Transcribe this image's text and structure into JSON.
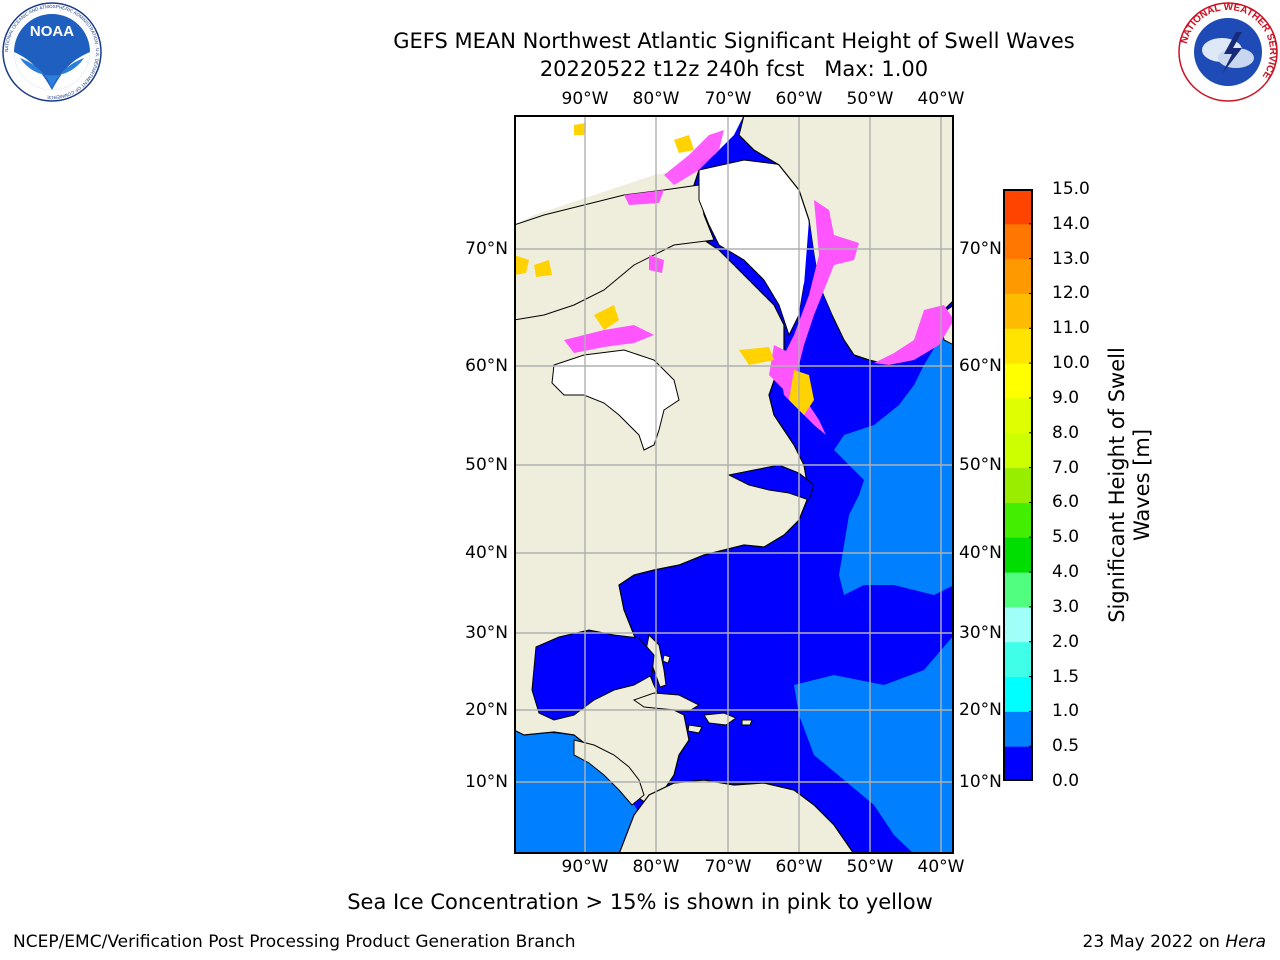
{
  "header": {
    "title_line1": "GEFS MEAN Northwest Atlantic Significant Height of Swell Waves",
    "title_line2": "20220522 t12z 240h fcst   Max: 1.00"
  },
  "logos": {
    "left_text": "NOAA",
    "left_ring": "NATIONAL OCEANIC AND ATMOSPHERIC ADMINISTRATION · U.S. DEPARTMENT OF COMMERCE",
    "right_ring": "NATIONAL WEATHER SERVICE"
  },
  "map": {
    "lon_labels": [
      "90°W",
      "80°W",
      "70°W",
      "60°W",
      "50°W",
      "40°W"
    ],
    "lat_labels": [
      "70°N",
      "60°N",
      "50°N",
      "40°N",
      "30°N",
      "20°N",
      "10°N"
    ],
    "colors": {
      "land": "#efeedc",
      "ocean_low": "#0000ff",
      "ocean_mid": "#0080ff",
      "ice_pink": "#ff55ff",
      "ice_yellow": "#ffd200",
      "grid": "#b0b0b0"
    }
  },
  "colorbar": {
    "title_line1": "Significant Height of Swell",
    "title_line2": "Waves [m]",
    "ticks": [
      "15.0",
      "14.0",
      "13.0",
      "12.0",
      "11.0",
      "10.0",
      "9.0",
      "8.0",
      "7.0",
      "6.0",
      "5.0",
      "4.0",
      "3.0",
      "2.0",
      "1.5",
      "1.0",
      "0.5",
      "0.0"
    ],
    "colors_bottom_to_top": [
      "#0000ff",
      "#0080ff",
      "#00ffff",
      "#40ffe8",
      "#a0fff8",
      "#50ff80",
      "#00dd00",
      "#44ee00",
      "#99ee00",
      "#ccff00",
      "#ddff00",
      "#ffff00",
      "#ffe400",
      "#ffbb00",
      "#ff9900",
      "#ff7700",
      "#ff4400",
      "#ff0000"
    ]
  },
  "footnote": "Sea Ice Concentration > 15% is shown in pink to yellow",
  "footer": {
    "left": "NCEP/EMC/Verification Post Processing Product Generation Branch",
    "right_date": "23 May 2022 on ",
    "right_host": "Hera"
  }
}
